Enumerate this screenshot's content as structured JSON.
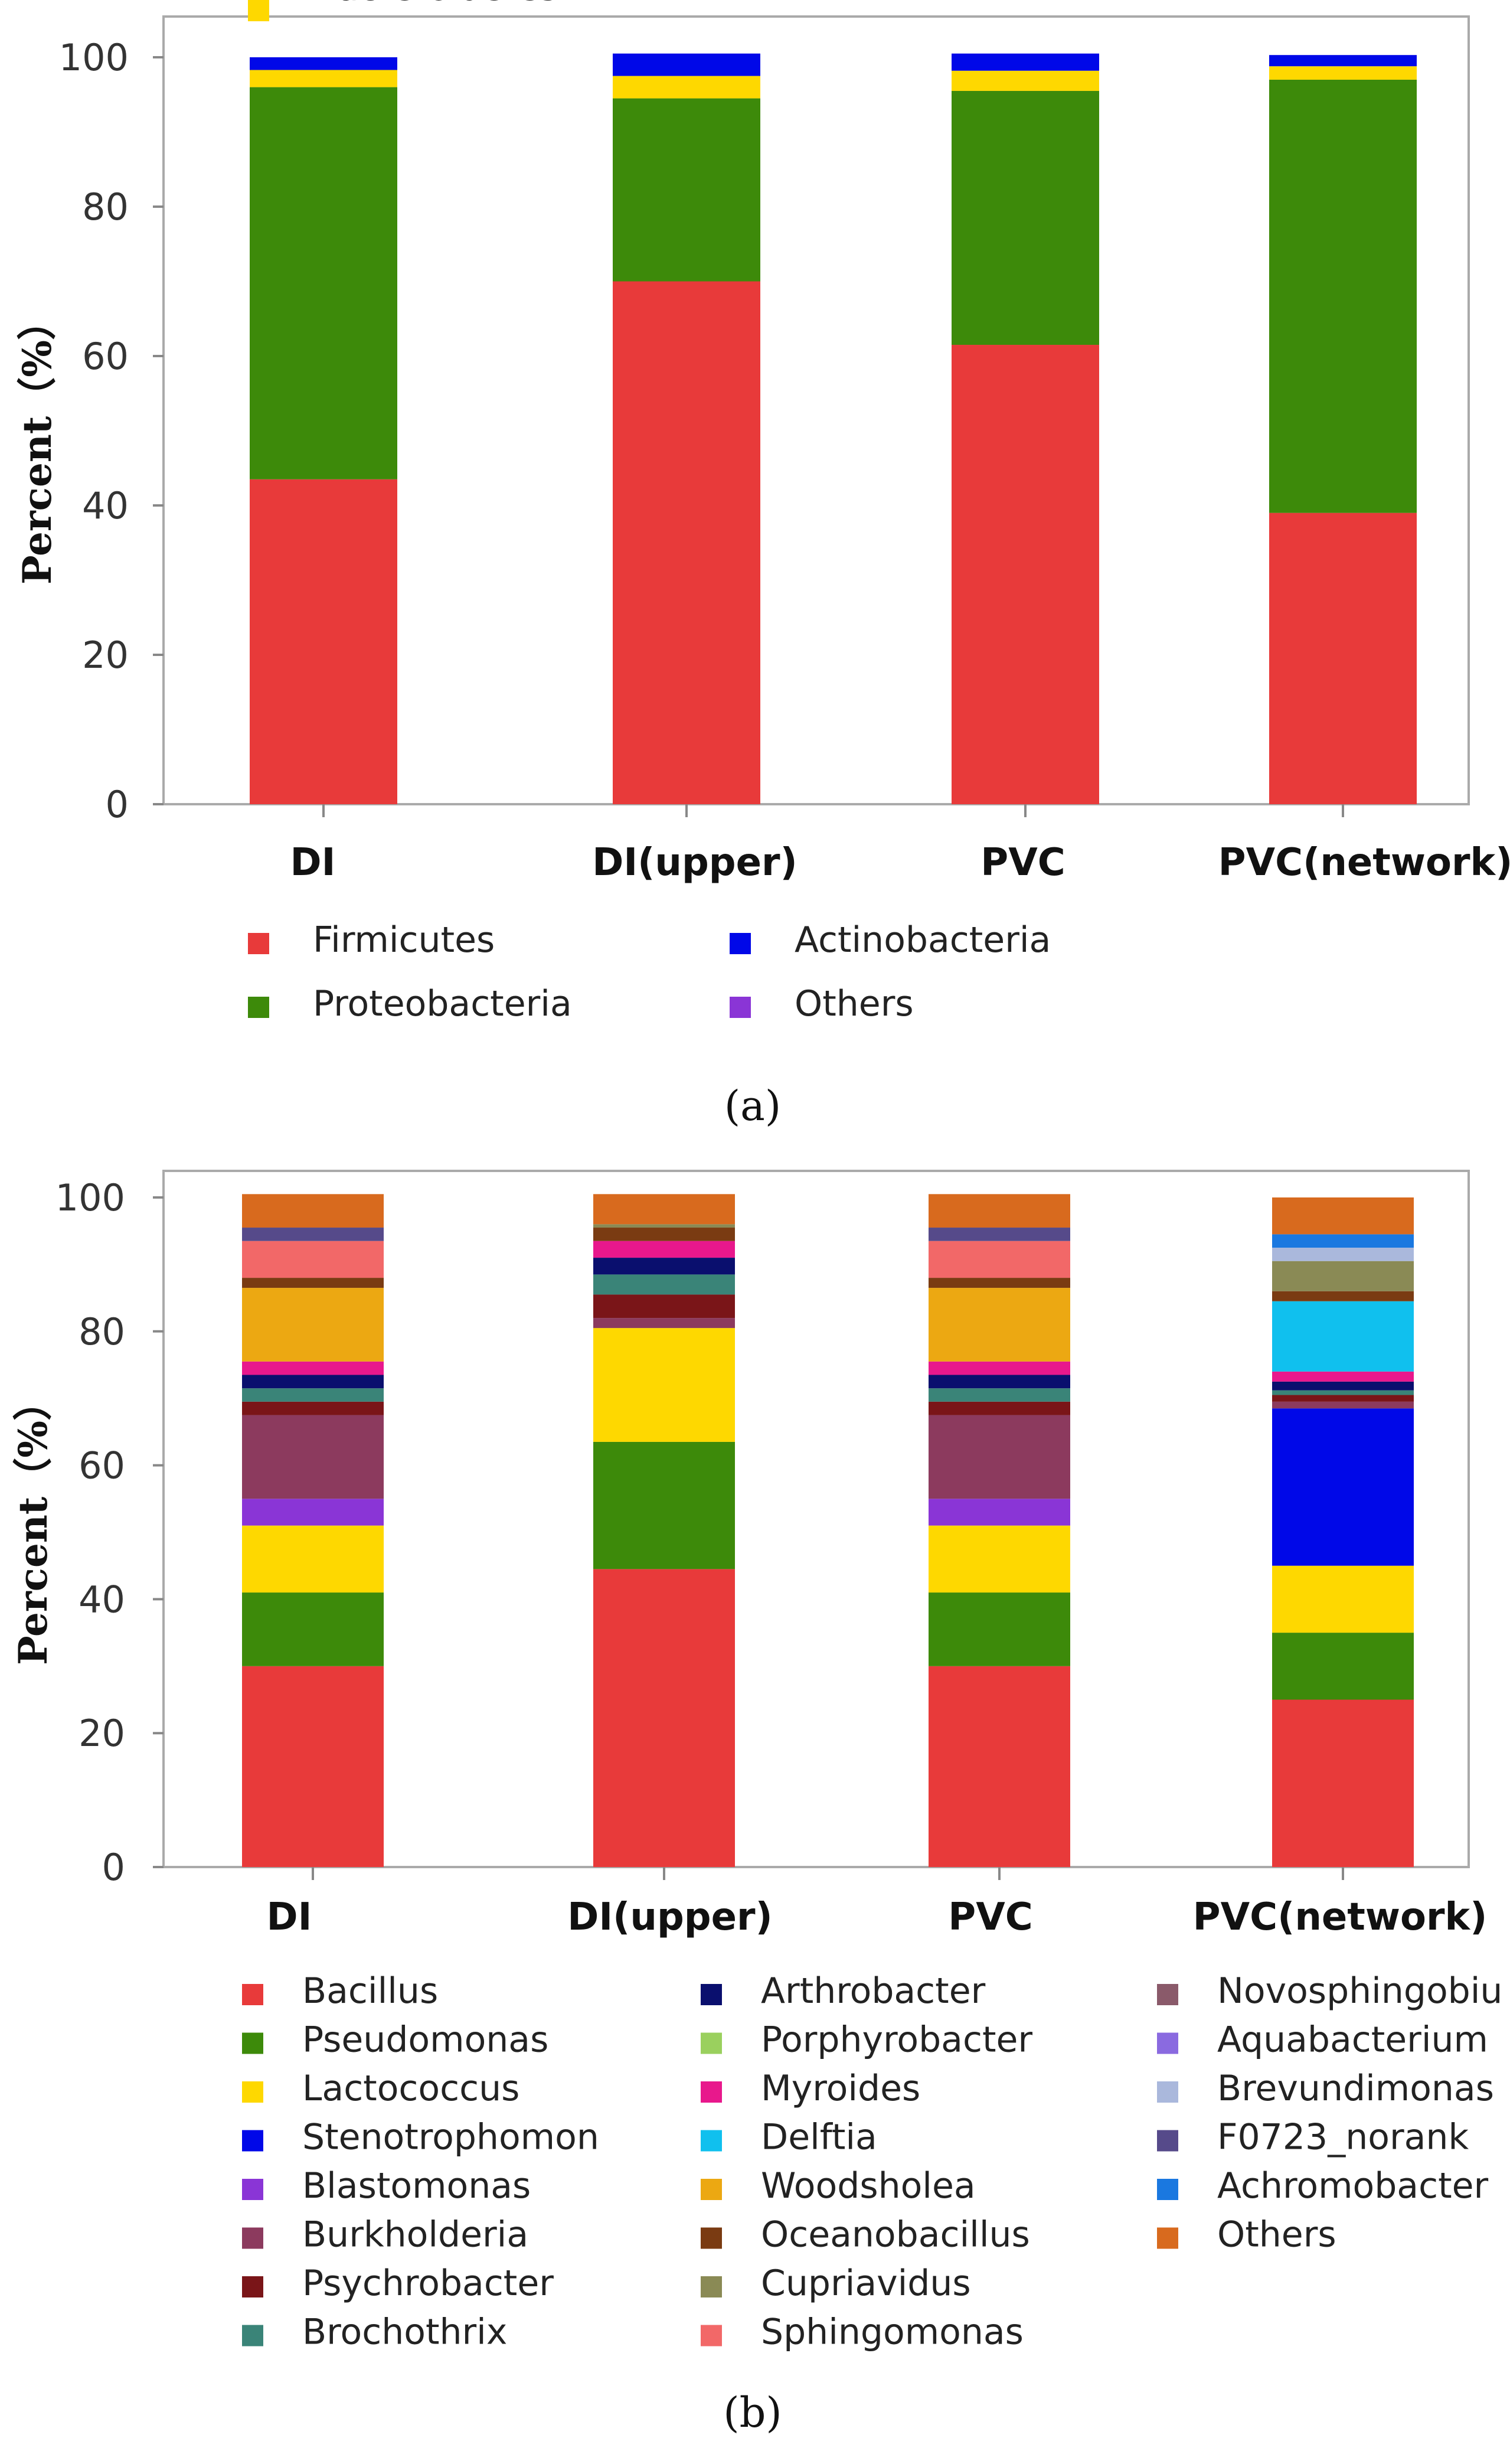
{
  "chart_data": [
    {
      "type": "bar",
      "stacked": true,
      "panel": "a",
      "ylabel": "Percent（%）",
      "ylim": [
        0,
        100
      ],
      "yticks": [
        0,
        20,
        40,
        60,
        80,
        100
      ],
      "categories": [
        "DI",
        "DI(upper)",
        "PVC",
        "PVC(network)"
      ],
      "series": [
        {
          "name": "Firmicutes",
          "color": "#e83a3a",
          "values": [
            43.5,
            70,
            61.5,
            39
          ]
        },
        {
          "name": "Proteobacteria",
          "color": "#3d8a0a",
          "values": [
            52.5,
            24.5,
            34,
            58
          ]
        },
        {
          "name": "Bacteroidetes",
          "color": "#fed800",
          "values": [
            2.3,
            3,
            2.7,
            1.8
          ]
        },
        {
          "name": "Actinobacteria",
          "color": "#0008e8",
          "values": [
            1.7,
            3,
            2.3,
            1.5
          ]
        },
        {
          "name": "Others",
          "color": "#8a35d6",
          "values": [
            0,
            0,
            0,
            0
          ]
        }
      ],
      "legend_cols": [
        3,
        3
      ]
    },
    {
      "type": "bar",
      "stacked": true,
      "panel": "b",
      "ylabel": "Percent（%）",
      "ylim": [
        0,
        100
      ],
      "yticks": [
        0,
        20,
        40,
        60,
        80,
        100
      ],
      "categories": [
        "DI",
        "DI(upper)",
        "PVC",
        "PVC(network)"
      ],
      "series": [
        {
          "name": "Bacillus",
          "color": "#e83a3a",
          "values": [
            30,
            44.5,
            30,
            25
          ]
        },
        {
          "name": "Pseudomonas",
          "color": "#3d8a0a",
          "values": [
            11,
            19,
            11,
            10
          ]
        },
        {
          "name": "Lactococcus",
          "color": "#fed800",
          "values": [
            10,
            17,
            10,
            10
          ]
        },
        {
          "name": "Stenotrophomon",
          "color": "#0008e8",
          "values": [
            0,
            0,
            0,
            23.5
          ]
        },
        {
          "name": "Blastomonas",
          "color": "#8a35d6",
          "values": [
            4,
            0,
            4,
            0
          ]
        },
        {
          "name": "Burkholderia",
          "color": "#8c3a5e",
          "values": [
            12.5,
            1.5,
            12.5,
            1
          ]
        },
        {
          "name": "Psychrobacter",
          "color": "#7a1518",
          "values": [
            2,
            3.5,
            2,
            1
          ]
        },
        {
          "name": "Brochothrix",
          "color": "#3a8478",
          "values": [
            2,
            3,
            2,
            0.7
          ]
        },
        {
          "name": "Arthrobacter",
          "color": "#0a0f6e",
          "values": [
            2,
            2.5,
            2,
            1.3
          ]
        },
        {
          "name": "Porphyrobacter",
          "color": "#9ad05e",
          "values": [
            0,
            0,
            0,
            0
          ]
        },
        {
          "name": "Myroides",
          "color": "#e8188c",
          "values": [
            2,
            2.5,
            2,
            1.5
          ]
        },
        {
          "name": "Delftia",
          "color": "#10c0ee",
          "values": [
            0,
            0,
            0,
            10.5
          ]
        },
        {
          "name": "Woodsholea",
          "color": "#eca812",
          "values": [
            11,
            0,
            11,
            0
          ]
        },
        {
          "name": "Oceanobacillus",
          "color": "#7a3b12",
          "values": [
            1.5,
            2,
            1.5,
            1.5
          ]
        },
        {
          "name": "Cupriavidus",
          "color": "#8a8a55",
          "values": [
            0,
            0.5,
            0,
            4.5
          ]
        },
        {
          "name": "Sphingomonas",
          "color": "#f26868",
          "values": [
            5.5,
            0,
            5.5,
            0
          ]
        },
        {
          "name": "Novosphingobiu",
          "color": "#8a5a6a",
          "values": [
            0,
            0,
            0,
            0
          ]
        },
        {
          "name": "Aquabacterium",
          "color": "#8a6ae0",
          "values": [
            0,
            0,
            0,
            0
          ]
        },
        {
          "name": "Brevundimonas",
          "color": "#aab8dc",
          "values": [
            0,
            0,
            0,
            2
          ]
        },
        {
          "name": "F0723_norank",
          "color": "#564a8a",
          "values": [
            2,
            0,
            2,
            0
          ]
        },
        {
          "name": "Achromobacter",
          "color": "#1a78e0",
          "values": [
            0,
            0,
            0,
            2
          ]
        },
        {
          "name": "Others",
          "color": "#d86a1e",
          "values": [
            5,
            4.5,
            5,
            5.5
          ]
        }
      ],
      "legend_cols": [
        8,
        8,
        6
      ]
    }
  ],
  "captions": [
    "(a)",
    "(b)"
  ]
}
